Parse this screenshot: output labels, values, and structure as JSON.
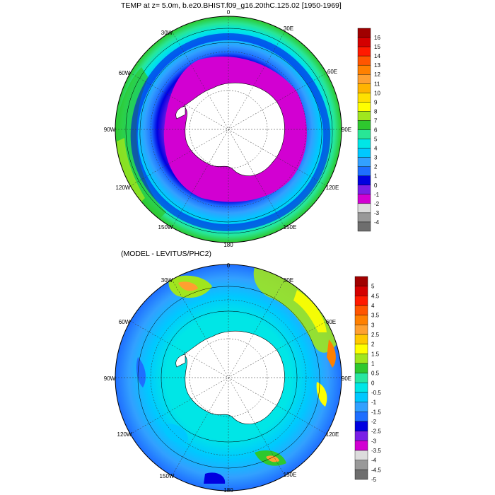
{
  "panels": [
    {
      "id": "temp",
      "title": "TEMP at z=   5.0m, b.e20.BHIST.f09_g16.20thC.125.02 [1950-1969]",
      "lon_labels": [
        "0",
        "30E",
        "60E",
        "90E",
        "120E",
        "150E",
        "180",
        "150W",
        "120W",
        "90W",
        "60W",
        "30W"
      ],
      "colorbar": {
        "labels": [
          "16",
          "15",
          "14",
          "13",
          "12",
          "11",
          "10",
          "9",
          "8",
          "7",
          "6",
          "5",
          "4",
          "3",
          "2",
          "1",
          "0",
          "-1",
          "-2",
          "-3",
          "-4"
        ],
        "colors": [
          "#a00000",
          "#d40000",
          "#ff1a00",
          "#ff5500",
          "#ff8000",
          "#ffa030",
          "#ffb400",
          "#ffe000",
          "#ffff00",
          "#a0e61e",
          "#2ec82e",
          "#28e696",
          "#00e6e6",
          "#00c8ff",
          "#32a0ff",
          "#1e6eff",
          "#0000e0",
          "#7a1ee6",
          "#d200d2",
          "#dcdcdc",
          "#999999",
          "#6e6e6e"
        ]
      }
    },
    {
      "id": "diff",
      "title": "(MODEL - LEVITUS/PHC2)",
      "lon_labels": [
        "0",
        "30E",
        "60E",
        "90E",
        "120E",
        "150E",
        "180",
        "150W",
        "120W",
        "90W",
        "60W",
        "30W"
      ],
      "colorbar": {
        "labels": [
          "5",
          "4.5",
          "4",
          "3.5",
          "3",
          "2.5",
          "2",
          "1.5",
          "1",
          "0.5",
          "0",
          "-0.5",
          "-1",
          "-1.5",
          "-2",
          "-2.5",
          "-3",
          "-3.5",
          "-4",
          "-4.5",
          "-5"
        ],
        "colors": [
          "#a00000",
          "#d40000",
          "#ff1a00",
          "#ff5500",
          "#ff8000",
          "#ffa030",
          "#ffc800",
          "#ffff00",
          "#a0e61e",
          "#2ec82e",
          "#28e6a0",
          "#00e6e6",
          "#00c8ff",
          "#32a0ff",
          "#1e6eff",
          "#0000e0",
          "#7a1ee6",
          "#d200d2",
          "#dcdcdc",
          "#999999",
          "#6e6e6e"
        ]
      }
    }
  ]
}
